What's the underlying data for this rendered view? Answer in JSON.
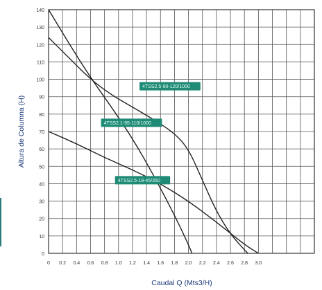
{
  "chart_data": {
    "type": "line",
    "title": "",
    "xlabel": "Caudal Q (Mts3/H)",
    "ylabel": "Altura de Columna (H)",
    "xlim": [
      0,
      3.8
    ],
    "ylim": [
      0,
      140
    ],
    "x_ticks": [
      0,
      0.2,
      0.4,
      0.6,
      0.8,
      1.0,
      1.2,
      1.4,
      1.6,
      1.8,
      2.0,
      2.2,
      2.4,
      2.6,
      2.8,
      3.0
    ],
    "x_tick_labels": [
      "0",
      "0.2",
      "0.4",
      "0.6",
      "0.8",
      "1.0",
      "1.2",
      "1.4",
      "1.6",
      "1.8",
      "2.0",
      "2.2",
      "2.4",
      "2.6",
      "2.8",
      "3.0"
    ],
    "y_ticks": [
      0,
      10,
      20,
      30,
      40,
      50,
      60,
      70,
      80,
      90,
      100,
      110,
      120,
      130,
      140
    ],
    "y_tick_labels": [
      "0",
      "10",
      "20",
      "30",
      "40",
      "50",
      "60",
      "70",
      "80",
      "90",
      "100",
      "110",
      "120",
      "130",
      "140"
    ],
    "grid": true,
    "line_color": "#222222",
    "label_bg_color": "#1f8a76",
    "label_text_color": "#e6fff8",
    "series": [
      {
        "name": "4TSS2.5-90-120/1000",
        "x": [
          0,
          0.3,
          0.6,
          0.9,
          1.2,
          1.5,
          1.8,
          2.0,
          2.2,
          2.4,
          2.6,
          2.8,
          2.85
        ],
        "y": [
          124,
          112,
          100,
          91,
          84,
          77,
          69,
          60,
          42,
          24,
          11,
          2,
          0
        ]
      },
      {
        "name": "4TSS2.1-95-110/1000",
        "x": [
          0,
          0.3,
          0.6,
          0.9,
          1.2,
          1.5,
          1.8,
          2.0,
          2.05
        ],
        "y": [
          140,
          120,
          101,
          84,
          66,
          45,
          22,
          5,
          0
        ]
      },
      {
        "name": "4TSS2.5-19-45/350",
        "x": [
          0,
          0.4,
          0.8,
          1.2,
          1.6,
          2.0,
          2.4,
          2.8,
          3.0
        ],
        "y": [
          70,
          63,
          55,
          48,
          40,
          30,
          18,
          5,
          0
        ]
      }
    ],
    "labels": [
      {
        "text": "4TSS2.5-90-120/1000",
        "x": 1.3,
        "y": 96
      },
      {
        "text": "4TSS2.1-95-110/1000",
        "x": 0.75,
        "y": 75
      },
      {
        "text": "4TSS2.5-19-45/350",
        "x": 0.95,
        "y": 42
      }
    ]
  }
}
